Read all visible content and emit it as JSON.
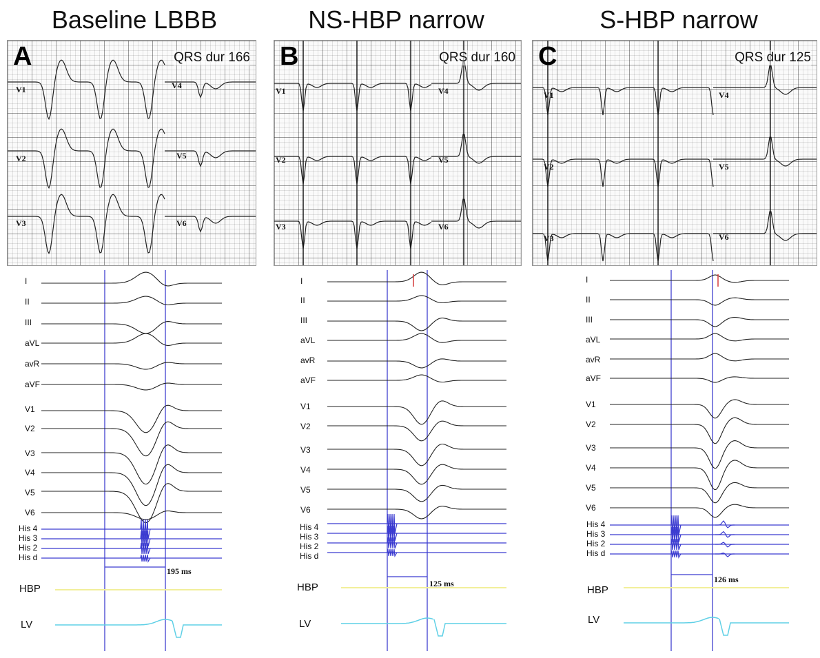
{
  "panels": [
    {
      "title": "Baseline LBBB",
      "letter": "A",
      "qrs_label": "QRS dur 166",
      "ecg_leads": [
        "V1",
        "V2",
        "V3",
        "V4",
        "V5",
        "V6"
      ],
      "egm_leads": [
        "I",
        "II",
        "III",
        "aVL",
        "avR",
        "aVF",
        "V1",
        "V2",
        "V3",
        "V4",
        "V5",
        "V6"
      ],
      "his_channels": [
        "His 4",
        "His 3",
        "His 2",
        "His d"
      ],
      "hbp_label": "HBP",
      "lv_label": "LV",
      "interval": "195 ms"
    },
    {
      "title": "NS-HBP narrow",
      "letter": "B",
      "qrs_label": "QRS dur 160",
      "ecg_leads": [
        "V1",
        "V2",
        "V3",
        "V4",
        "V5",
        "V6"
      ],
      "egm_leads": [
        "I",
        "II",
        "III",
        "aVL",
        "avR",
        "aVF",
        "V1",
        "V2",
        "V3",
        "V4",
        "V5",
        "V6"
      ],
      "his_channels": [
        "His 4",
        "His 3",
        "His 2",
        "His d"
      ],
      "hbp_label": "HBP",
      "lv_label": "LV",
      "interval": "125 ms"
    },
    {
      "title": "S-HBP narrow",
      "letter": "C",
      "qrs_label": "QRS dur 125",
      "ecg_leads": [
        "V1",
        "V2",
        "V3",
        "V4",
        "V5",
        "V6"
      ],
      "egm_leads": [
        "I",
        "II",
        "III",
        "aVL",
        "avR",
        "aVF",
        "V1",
        "V2",
        "V3",
        "V4",
        "V5",
        "V6"
      ],
      "his_channels": [
        "His 4",
        "His 3",
        "His 2",
        "His d"
      ],
      "hbp_label": "HBP",
      "lv_label": "LV",
      "interval": "126 ms"
    }
  ],
  "colors": {
    "trace": "#222222",
    "marker": "#5a5ad6",
    "his": "#3a3ad0",
    "hbp": "#f2ef9a",
    "lv": "#5fd0e6",
    "pace": "#d43a3a"
  }
}
